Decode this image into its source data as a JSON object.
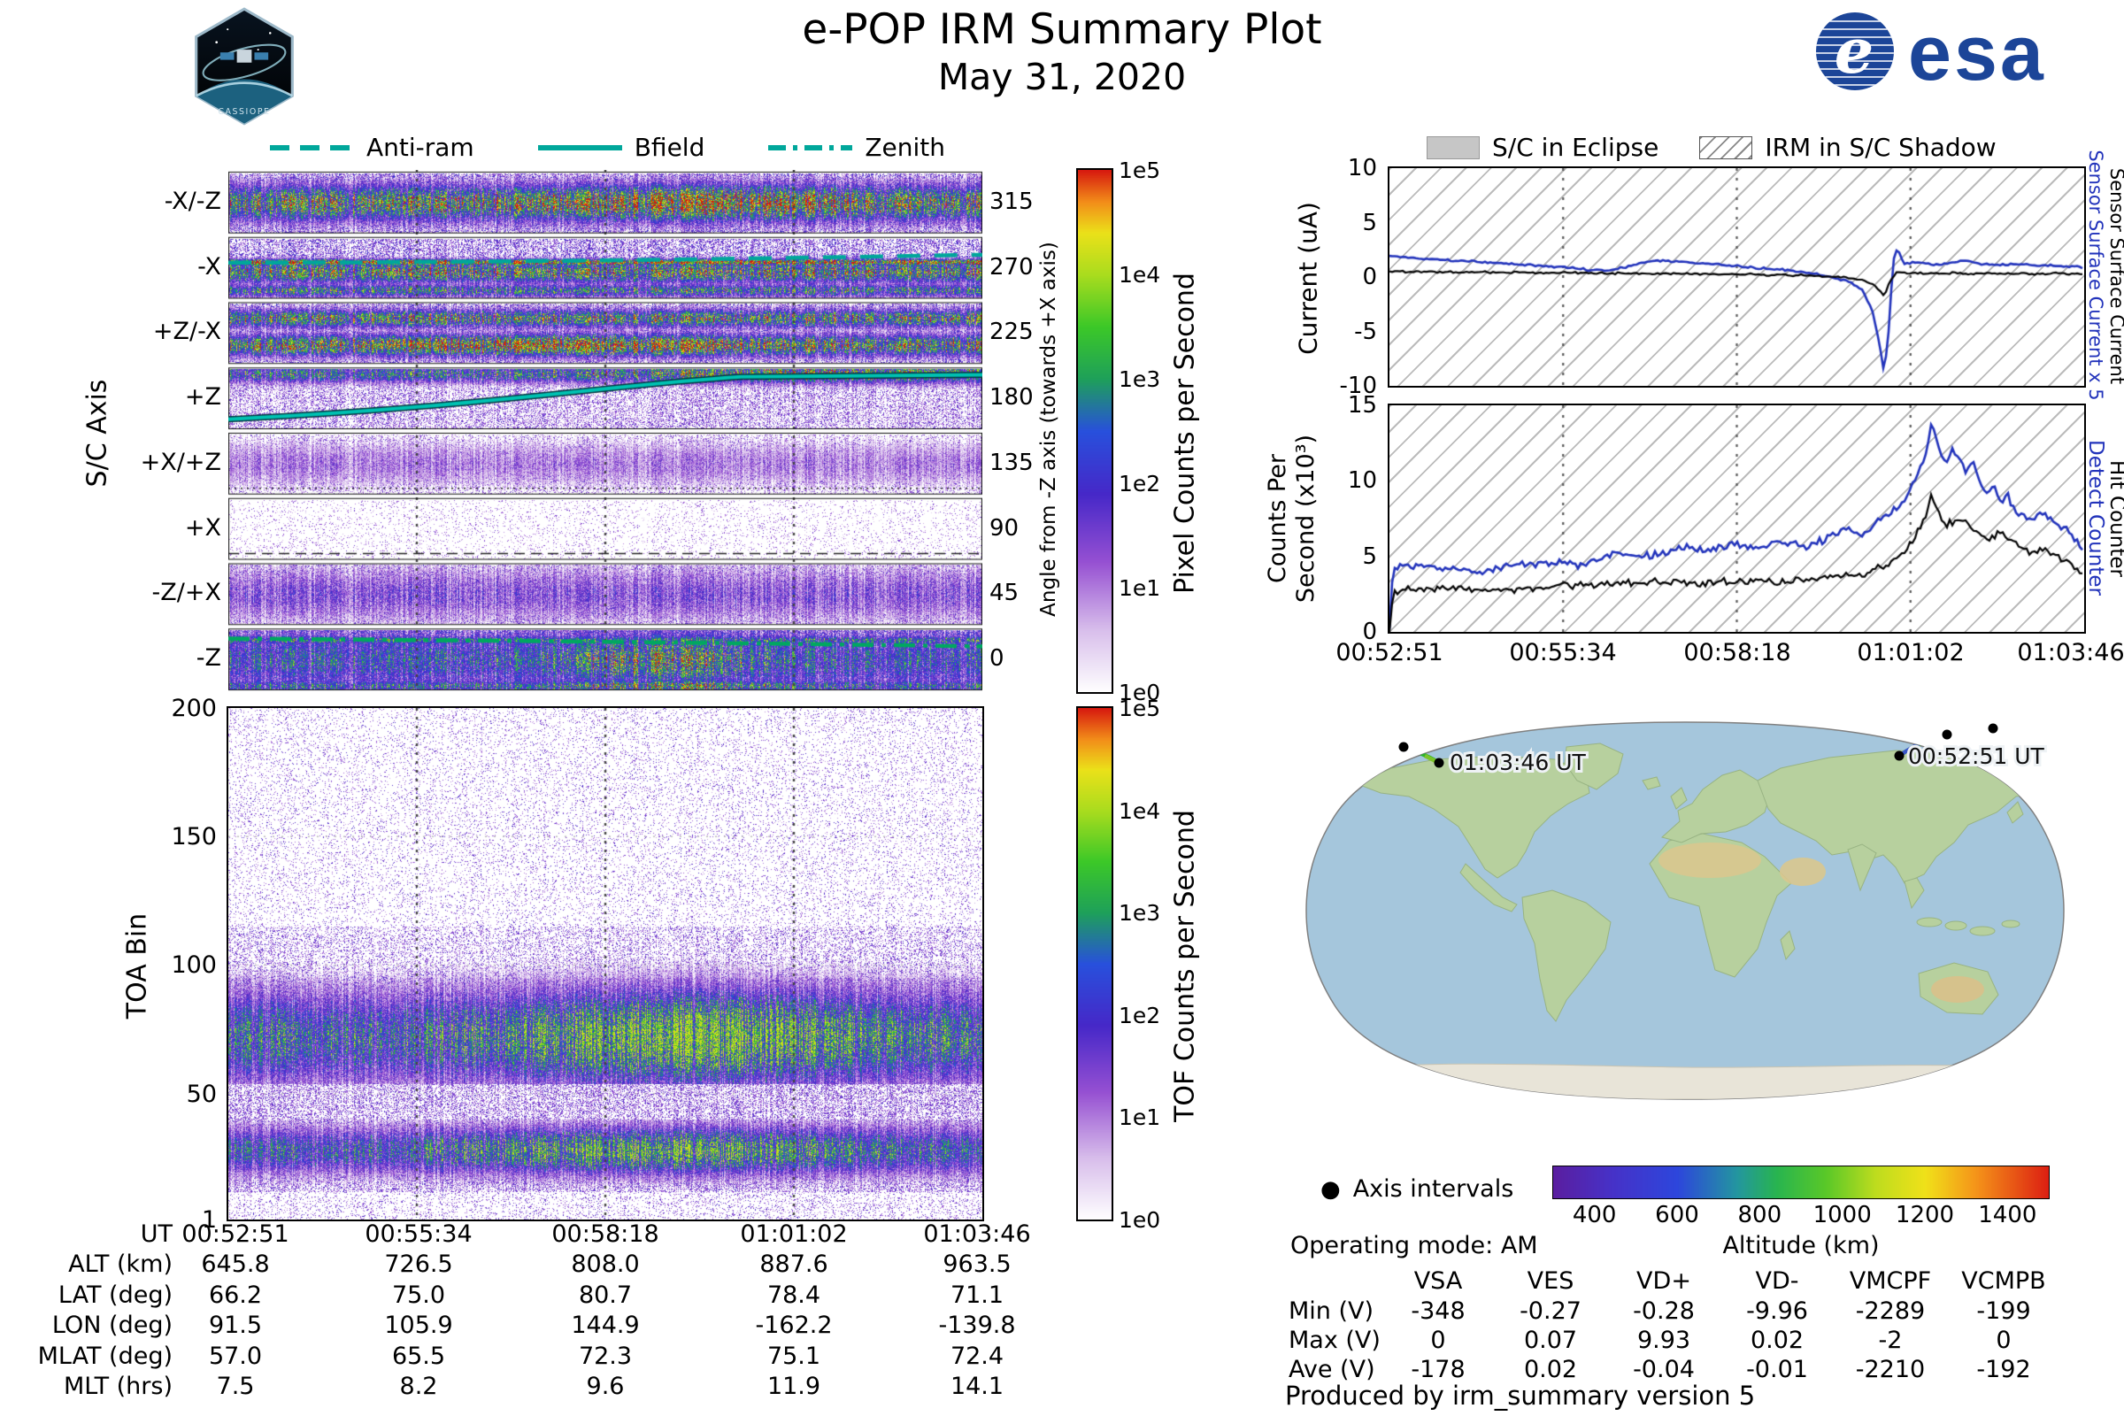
{
  "header": {
    "title": "e-POP IRM Summary Plot",
    "date": "May 31, 2020",
    "esa_text": "esa",
    "cassiope_text": "CASSIOPE"
  },
  "line_legend": {
    "color": "#00a79b",
    "items": [
      {
        "label": "Anti-ram",
        "style": "dashed"
      },
      {
        "label": "Bfield",
        "style": "solid"
      },
      {
        "label": "Zenith",
        "style": "dashdot"
      }
    ]
  },
  "shadow_legend": {
    "eclipse_label": "S/C in Eclipse",
    "shadow_label": "IRM in S/C Shadow"
  },
  "footer": {
    "axis_intervals_label": "Axis intervals",
    "operating_mode": "Operating mode: AM",
    "produced_by": "Produced by irm_summary version 5"
  },
  "map": {
    "start_label": "00:52:51 UT",
    "end_label": "01:03:46 UT"
  },
  "ephemeris": {
    "row_labels": [
      "UT",
      "ALT (km)",
      "LAT (deg)",
      "LON (deg)",
      "MLAT (deg)",
      "MLT (hrs)"
    ],
    "columns": [
      [
        "00:52:51",
        "645.8",
        "66.2",
        "91.5",
        "57.0",
        "7.5"
      ],
      [
        "00:55:34",
        "726.5",
        "75.0",
        "105.9",
        "65.5",
        "8.2"
      ],
      [
        "00:58:18",
        "808.0",
        "80.7",
        "144.9",
        "72.3",
        "9.6"
      ],
      [
        "01:01:02",
        "887.6",
        "78.4",
        "-162.2",
        "75.1",
        "11.9"
      ],
      [
        "01:03:46",
        "963.5",
        "71.1",
        "-139.8",
        "72.4",
        "14.1"
      ]
    ]
  },
  "voltages": {
    "col_headers": [
      "VSA",
      "VES",
      "VD+",
      "VD-",
      "VMCPF",
      "VCMPB"
    ],
    "row_labels": [
      "Min (V)",
      "Max (V)",
      "Ave (V)"
    ],
    "rows": [
      [
        "-348",
        "-0.27",
        "-0.28",
        "-9.96",
        "-2289",
        "-199"
      ],
      [
        "0",
        "0.07",
        "9.93",
        "0.02",
        "-2",
        "0"
      ],
      [
        "-178",
        "0.02",
        "-0.04",
        "-0.01",
        "-2210",
        "-192"
      ]
    ]
  },
  "chart_data": [
    {
      "id": "sc_axis_spectrogram",
      "type": "heatmap",
      "ylabel": "S/C Axis",
      "y_categories": [
        "-X/-Z",
        "-X",
        "+Z/-X",
        "+Z",
        "+X/+Z",
        "+X",
        "-Z/+X",
        "-Z"
      ],
      "right_axis_label": "Angle from -Z axis (towards +X axis)",
      "right_axis_ticks": [
        "315",
        "270",
        "225",
        "180",
        "135",
        "90",
        "45",
        "0"
      ],
      "colorbar_label": "Pixel Counts per Second",
      "colorbar_ticks": [
        "1e5",
        "1e4",
        "1e3",
        "1e2",
        "1e1",
        "1e0"
      ],
      "x_ticks": [
        "00:52:51",
        "00:55:34",
        "00:58:18",
        "01:01:02",
        "01:03:46"
      ],
      "overlay_lines": [
        "Anti-ram",
        "Bfield",
        "Zenith"
      ]
    },
    {
      "id": "toa_spectrogram",
      "type": "heatmap",
      "ylabel": "TOA Bin",
      "y_ticks": [
        "200",
        "150",
        "100",
        "50",
        "1"
      ],
      "colorbar_label": "TOF Counts per Second",
      "colorbar_ticks": [
        "1e5",
        "1e4",
        "1e3",
        "1e2",
        "1e1",
        "1e0"
      ]
    },
    {
      "id": "sensor_current",
      "type": "line",
      "ylabel": "Current (uA)",
      "ylim": [
        -10,
        10
      ],
      "y_ticks": [
        "10",
        "5",
        "0",
        "-5",
        "-10"
      ],
      "right_labels": [
        {
          "text": "Sensor Surface Current x 5",
          "color": "#2233bb"
        },
        {
          "text": "Sensor Surface Current",
          "color": "#000000"
        }
      ],
      "series": [
        {
          "name": "Sensor Surface Current x 5",
          "color": "#2233bb",
          "points": [
            [
              0,
              1.9
            ],
            [
              0.05,
              1.7
            ],
            [
              0.1,
              1.5
            ],
            [
              0.15,
              1.3
            ],
            [
              0.2,
              1.1
            ],
            [
              0.25,
              0.9
            ],
            [
              0.28,
              0.7
            ],
            [
              0.31,
              0.6
            ],
            [
              0.34,
              0.9
            ],
            [
              0.37,
              1.4
            ],
            [
              0.4,
              1.5
            ],
            [
              0.44,
              1.3
            ],
            [
              0.48,
              1.1
            ],
            [
              0.52,
              0.9
            ],
            [
              0.56,
              0.7
            ],
            [
              0.6,
              0.4
            ],
            [
              0.63,
              0.1
            ],
            [
              0.66,
              -0.4
            ],
            [
              0.68,
              -1.2
            ],
            [
              0.695,
              -3.0
            ],
            [
              0.705,
              -6.0
            ],
            [
              0.712,
              -8.8
            ],
            [
              0.718,
              -5.5
            ],
            [
              0.722,
              -1.5
            ],
            [
              0.727,
              2.4
            ],
            [
              0.733,
              2.3
            ],
            [
              0.74,
              1.2
            ],
            [
              0.76,
              1.4
            ],
            [
              0.78,
              1.1
            ],
            [
              0.8,
              1.2
            ],
            [
              0.83,
              1.5
            ],
            [
              0.85,
              1.2
            ],
            [
              0.88,
              1.1
            ],
            [
              0.9,
              1.2
            ],
            [
              0.93,
              1.1
            ],
            [
              0.96,
              1.0
            ],
            [
              1,
              0.9
            ]
          ]
        },
        {
          "name": "Sensor Surface Current",
          "color": "#000000",
          "points": [
            [
              0,
              0.5
            ],
            [
              0.1,
              0.45
            ],
            [
              0.2,
              0.4
            ],
            [
              0.3,
              0.35
            ],
            [
              0.4,
              0.3
            ],
            [
              0.5,
              0.25
            ],
            [
              0.6,
              0.15
            ],
            [
              0.65,
              0.0
            ],
            [
              0.68,
              -0.3
            ],
            [
              0.7,
              -0.8
            ],
            [
              0.712,
              -1.7
            ],
            [
              0.72,
              -0.5
            ],
            [
              0.73,
              0.4
            ],
            [
              0.75,
              0.35
            ],
            [
              0.8,
              0.35
            ],
            [
              0.9,
              0.3
            ],
            [
              1,
              0.3
            ]
          ]
        }
      ]
    },
    {
      "id": "counters",
      "type": "line",
      "ylabel": "Counts Per Second (x10³)",
      "ylabel_lines": [
        "Counts Per",
        "Second (x10³)"
      ],
      "ylim": [
        0,
        15
      ],
      "y_ticks": [
        "15",
        "10",
        "5",
        "0"
      ],
      "x_ticks": [
        "00:52:51",
        "00:55:34",
        "00:58:18",
        "01:01:02",
        "01:03:46"
      ],
      "right_labels": [
        {
          "text": "Detect Counter",
          "color": "#2233bb"
        },
        {
          "text": "Hit Counter",
          "color": "#000000"
        }
      ],
      "series": [
        {
          "name": "Detect Counter",
          "color": "#2233bb",
          "points": [
            [
              0,
              0
            ],
            [
              0.005,
              4.2
            ],
            [
              0.02,
              4.5
            ],
            [
              0.05,
              4.3
            ],
            [
              0.08,
              4.1
            ],
            [
              0.1,
              4.2
            ],
            [
              0.13,
              4.0
            ],
            [
              0.16,
              4.3
            ],
            [
              0.2,
              4.4
            ],
            [
              0.24,
              4.6
            ],
            [
              0.27,
              4.4
            ],
            [
              0.3,
              4.8
            ],
            [
              0.33,
              5.2
            ],
            [
              0.36,
              5.0
            ],
            [
              0.4,
              5.3
            ],
            [
              0.43,
              5.6
            ],
            [
              0.46,
              5.4
            ],
            [
              0.5,
              5.8
            ],
            [
              0.53,
              5.5
            ],
            [
              0.56,
              6.0
            ],
            [
              0.6,
              5.6
            ],
            [
              0.63,
              6.2
            ],
            [
              0.66,
              6.8
            ],
            [
              0.68,
              6.4
            ],
            [
              0.7,
              7.2
            ],
            [
              0.72,
              7.8
            ],
            [
              0.74,
              8.5
            ],
            [
              0.75,
              9.5
            ],
            [
              0.76,
              10.5
            ],
            [
              0.77,
              11.5
            ],
            [
              0.78,
              13.8
            ],
            [
              0.79,
              12.5
            ],
            [
              0.8,
              11.0
            ],
            [
              0.81,
              12.0
            ],
            [
              0.82,
              11.5
            ],
            [
              0.83,
              10.5
            ],
            [
              0.84,
              11.2
            ],
            [
              0.85,
              10.0
            ],
            [
              0.86,
              9.0
            ],
            [
              0.87,
              9.5
            ],
            [
              0.88,
              8.5
            ],
            [
              0.89,
              9.0
            ],
            [
              0.9,
              8.0
            ],
            [
              0.92,
              7.5
            ],
            [
              0.94,
              7.8
            ],
            [
              0.96,
              7.2
            ],
            [
              0.98,
              6.5
            ],
            [
              1,
              5.2
            ]
          ]
        },
        {
          "name": "Hit Counter",
          "color": "#000000",
          "points": [
            [
              0,
              0
            ],
            [
              0.005,
              2.6
            ],
            [
              0.05,
              2.9
            ],
            [
              0.1,
              2.8
            ],
            [
              0.15,
              2.7
            ],
            [
              0.2,
              2.9
            ],
            [
              0.25,
              3.0
            ],
            [
              0.3,
              3.1
            ],
            [
              0.35,
              3.2
            ],
            [
              0.4,
              3.3
            ],
            [
              0.45,
              3.2
            ],
            [
              0.5,
              3.4
            ],
            [
              0.55,
              3.3
            ],
            [
              0.6,
              3.5
            ],
            [
              0.65,
              3.8
            ],
            [
              0.68,
              3.6
            ],
            [
              0.7,
              4.2
            ],
            [
              0.72,
              4.5
            ],
            [
              0.74,
              5.2
            ],
            [
              0.76,
              6.5
            ],
            [
              0.77,
              7.5
            ],
            [
              0.78,
              9.0
            ],
            [
              0.79,
              8.0
            ],
            [
              0.8,
              7.0
            ],
            [
              0.82,
              7.5
            ],
            [
              0.84,
              6.8
            ],
            [
              0.86,
              6.2
            ],
            [
              0.88,
              6.5
            ],
            [
              0.9,
              5.8
            ],
            [
              0.92,
              5.2
            ],
            [
              0.94,
              5.5
            ],
            [
              0.96,
              5.0
            ],
            [
              0.98,
              4.5
            ],
            [
              1,
              3.9
            ]
          ]
        }
      ]
    },
    {
      "id": "ground_track_map",
      "type": "map",
      "start_label": "00:52:51 UT",
      "end_label": "01:03:46 UT",
      "marker_legend": "Axis intervals",
      "colorbar_label": "Altitude (km)",
      "colorbar_ticks": [
        "400",
        "600",
        "800",
        "1000",
        "1200",
        "1400"
      ],
      "colorbar_range": [
        300,
        1500
      ]
    }
  ]
}
